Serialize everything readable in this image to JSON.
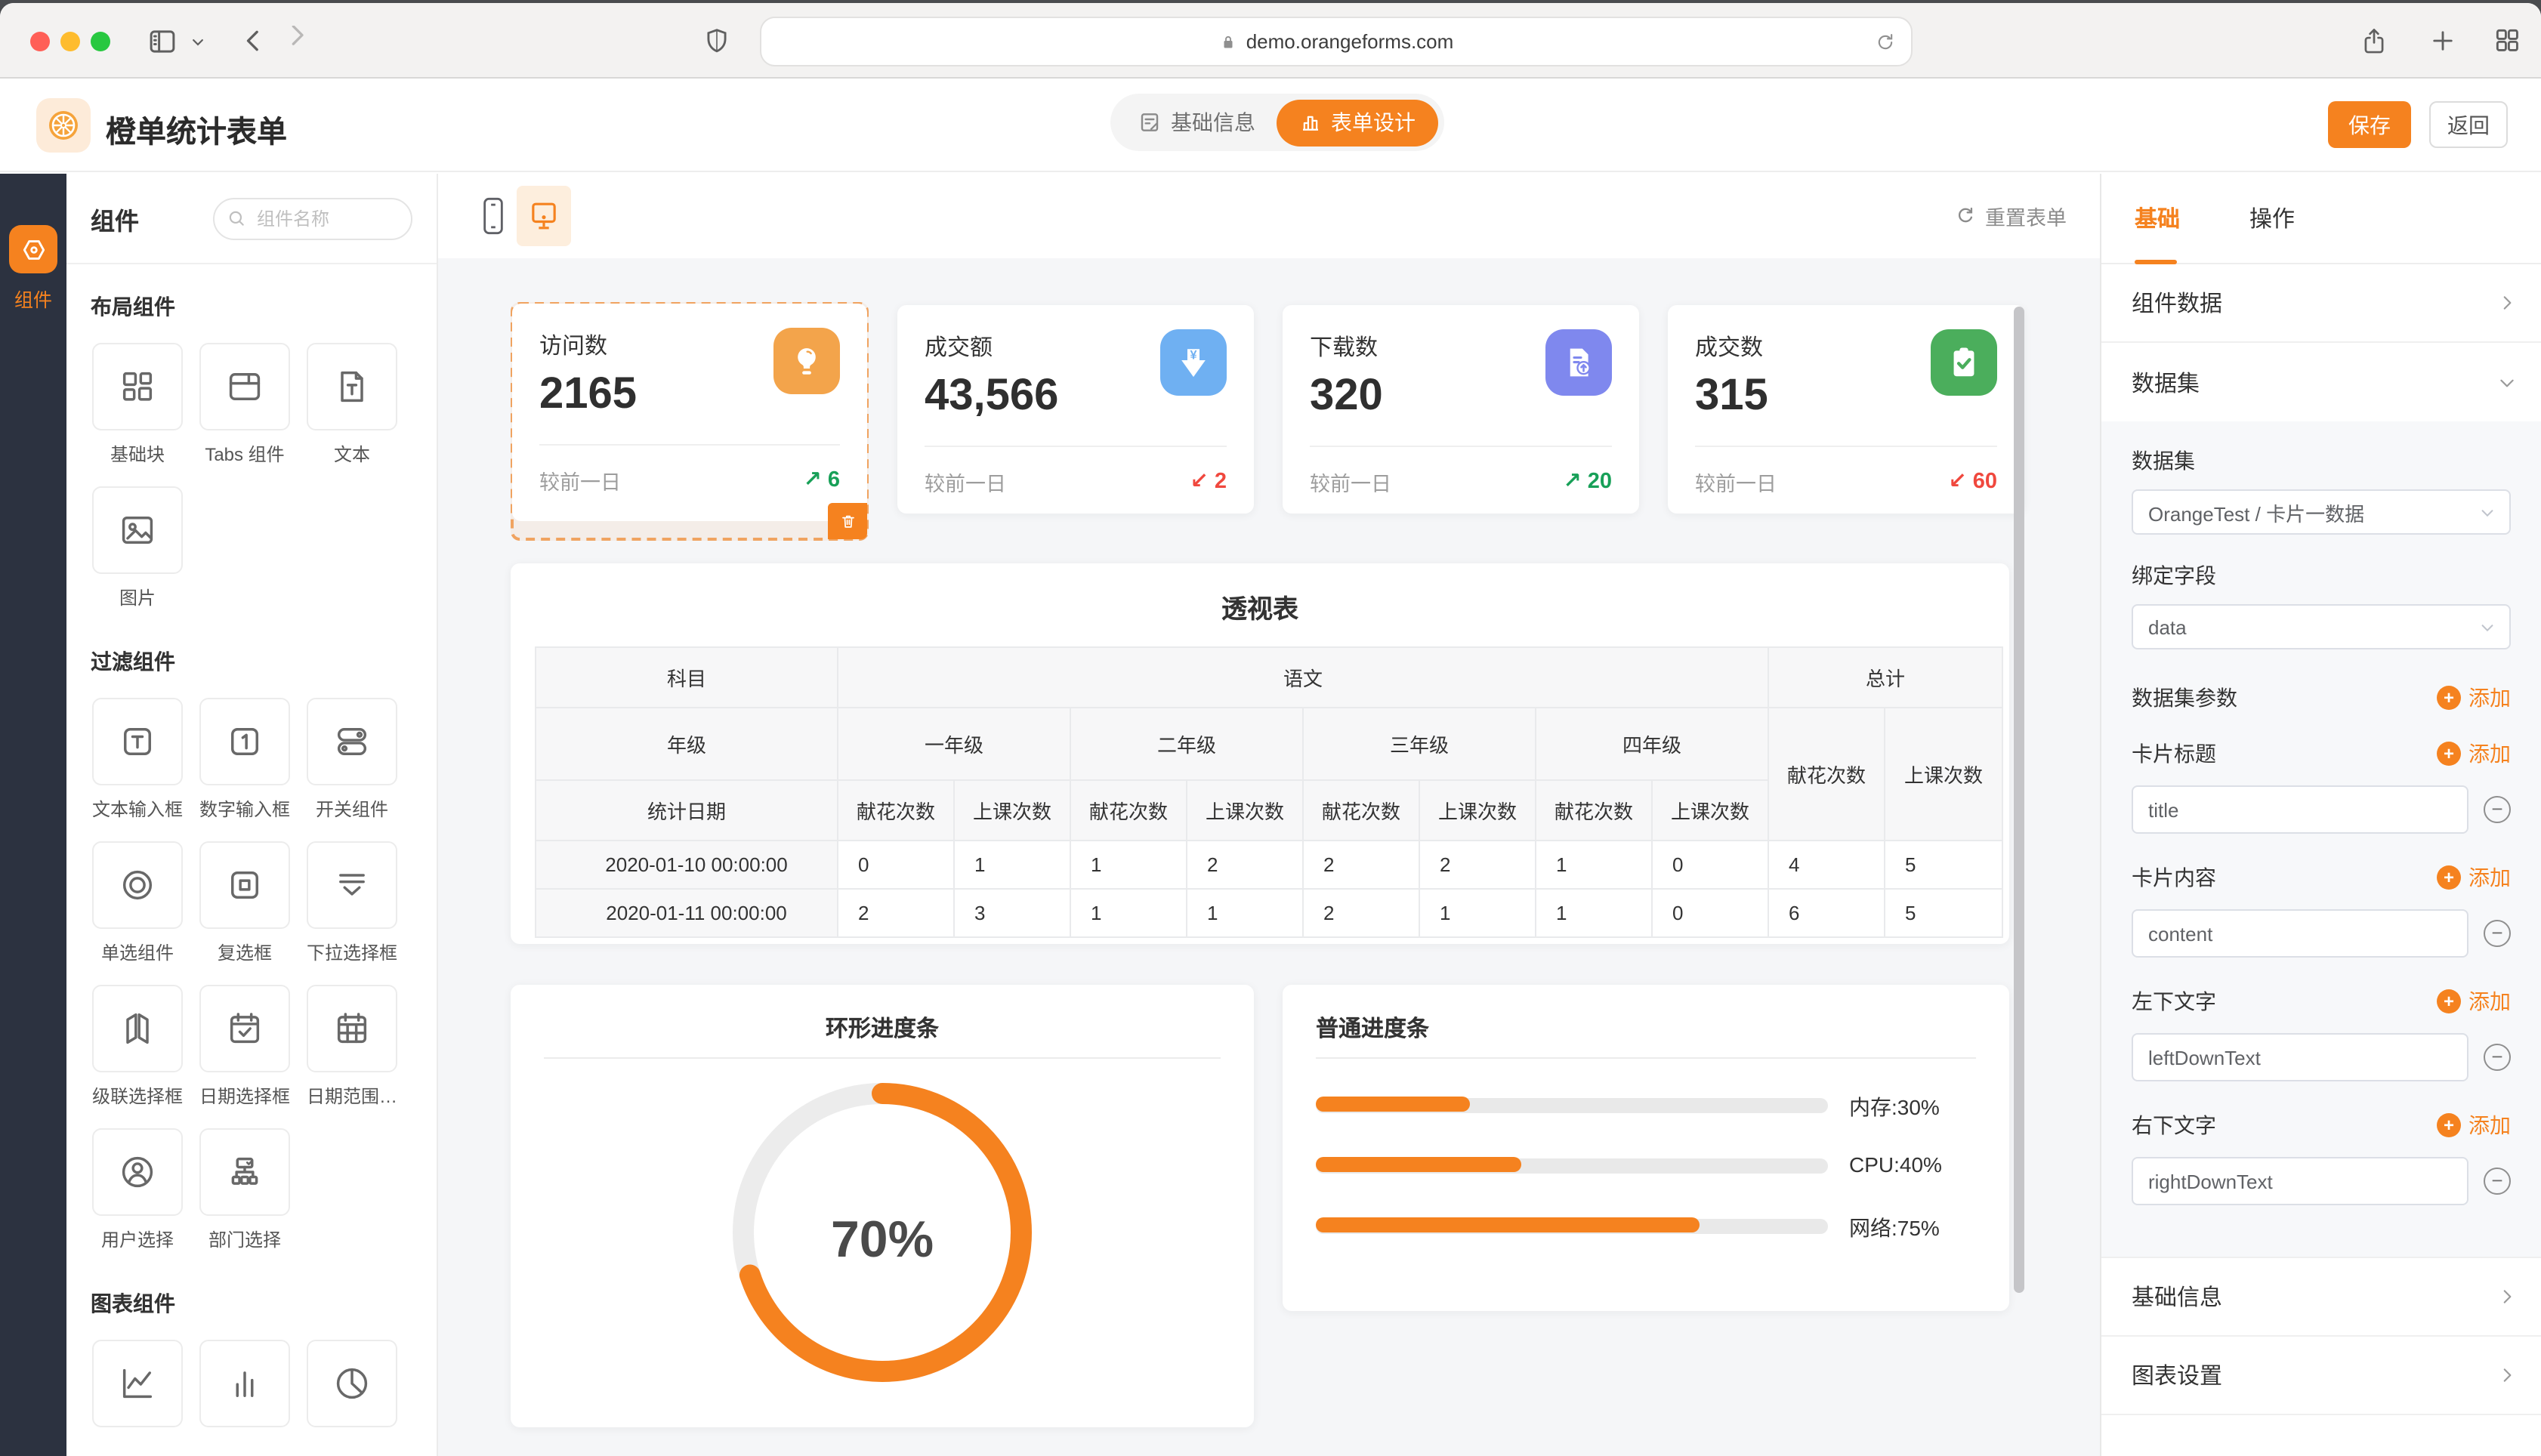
{
  "browser": {
    "url": "demo.orangeforms.com"
  },
  "app_header": {
    "title": "橙单统计表单",
    "tab_basic": "基础信息",
    "tab_design": "表单设计",
    "save_label": "保存",
    "back_label": "返回"
  },
  "rail": {
    "label": "组件"
  },
  "sidebar": {
    "title": "组件",
    "search_placeholder": "组件名称",
    "sections": [
      {
        "label": "布局组件",
        "items": [
          {
            "label": "基础块",
            "icon": "blocks-icon"
          },
          {
            "label": "Tabs 组件",
            "icon": "tabs-layout-icon"
          },
          {
            "label": "文本",
            "icon": "text-doc-icon"
          },
          {
            "label": "图片",
            "icon": "image-icon"
          }
        ]
      },
      {
        "label": "过滤组件",
        "items": [
          {
            "label": "文本输入框",
            "icon": "text-input-icon"
          },
          {
            "label": "数字输入框",
            "icon": "number-input-icon"
          },
          {
            "label": "开关组件",
            "icon": "switch-icon"
          },
          {
            "label": "单选组件",
            "icon": "radio-icon"
          },
          {
            "label": "复选框",
            "icon": "checkbox-icon"
          },
          {
            "label": "下拉选择框",
            "icon": "dropdown-icon"
          },
          {
            "label": "级联选择框",
            "icon": "cascade-icon"
          },
          {
            "label": "日期选择框",
            "icon": "date-picker-icon"
          },
          {
            "label": "日期范围…",
            "icon": "date-range-icon"
          },
          {
            "label": "用户选择",
            "icon": "user-select-icon"
          },
          {
            "label": "部门选择",
            "icon": "dept-select-icon"
          }
        ]
      },
      {
        "label": "图表组件",
        "items": [
          {
            "label": "",
            "icon": "line-chart-icon"
          },
          {
            "label": "",
            "icon": "bar-chart-icon"
          },
          {
            "label": "",
            "icon": "pie-chart-icon"
          }
        ]
      }
    ]
  },
  "canvas": {
    "reset_label": "重置表单",
    "cards": [
      {
        "title": "访问数",
        "value": "2165",
        "compare": "较前一日",
        "trend": "up",
        "trend_value": "6",
        "icon": "bulb-icon",
        "icon_bg": "#F3A44B",
        "selected": true
      },
      {
        "title": "成交额",
        "value": "43,566",
        "compare": "较前一日",
        "trend": "down",
        "trend_value": "2",
        "icon": "yen-download-icon",
        "icon_bg": "#6FB0F2",
        "selected": false
      },
      {
        "title": "下载数",
        "value": "320",
        "compare": "较前一日",
        "trend": "up",
        "trend_value": "20",
        "icon": "file-upload-icon",
        "icon_bg": "#7F88EE",
        "selected": false
      },
      {
        "title": "成交数",
        "value": "315",
        "compare": "较前一日",
        "trend": "down",
        "trend_value": "60",
        "icon": "clipboard-check-icon",
        "icon_bg": "#4BAE5C",
        "selected": false
      }
    ],
    "pivot": {
      "title": "透视表",
      "corner_subject": "科目",
      "corner_grade": "年级",
      "corner_date": "统计日期",
      "subject": "语文",
      "total": "总计",
      "grades": [
        "一年级",
        "二年级",
        "三年级",
        "四年级"
      ],
      "metric_flowers": "献花次数",
      "metric_classes": "上课次数",
      "rows": [
        {
          "date": "2020-01-10 00:00:00",
          "values": [
            "0",
            "1",
            "1",
            "2",
            "2",
            "2",
            "1",
            "0",
            "4",
            "5"
          ]
        },
        {
          "date": "2020-01-11 00:00:00",
          "values": [
            "2",
            "3",
            "1",
            "1",
            "2",
            "1",
            "1",
            "0",
            "6",
            "5"
          ]
        }
      ]
    },
    "ring": {
      "title": "环形进度条",
      "percent": 70,
      "label": "70%"
    },
    "bars": {
      "title": "普通进度条",
      "items": [
        {
          "label": "内存:30%",
          "pct": 30
        },
        {
          "label": "CPU:40%",
          "pct": 40
        },
        {
          "label": "网络:75%",
          "pct": 75
        }
      ]
    }
  },
  "panel": {
    "tab_basic": "基础",
    "tab_action": "操作",
    "row_component_data": "组件数据",
    "row_dataset": "数据集",
    "dataset_label": "数据集",
    "dataset_value": "OrangeTest / 卡片一数据",
    "bind_label": "绑定字段",
    "bind_value": "data",
    "add_label": "添加",
    "groups": [
      {
        "label": "数据集参数",
        "value": null
      },
      {
        "label": "卡片标题",
        "value": "title"
      },
      {
        "label": "卡片内容",
        "value": "content"
      },
      {
        "label": "左下文字",
        "value": "leftDownText"
      },
      {
        "label": "右下文字",
        "value": "rightDownText"
      }
    ],
    "row_basic_info": "基础信息",
    "row_chart_settings": "图表设置"
  },
  "colors": {
    "accent": "#F5821F",
    "green": "#18A058",
    "red": "#F0483E",
    "rail": "#2C3240"
  }
}
